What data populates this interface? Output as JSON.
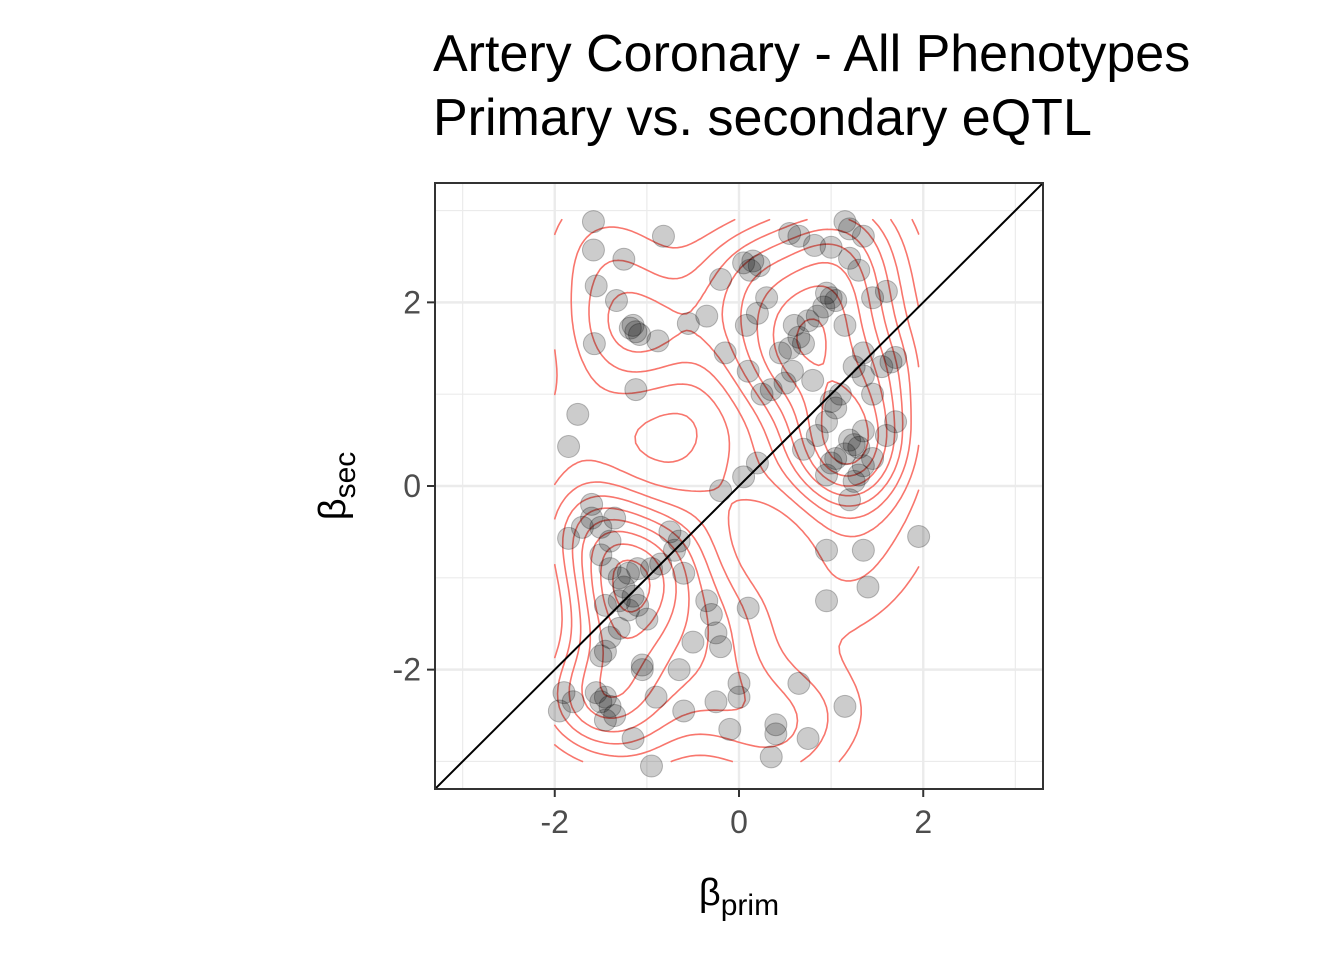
{
  "chart_data": {
    "type": "scatter",
    "title": "Artery Coronary - All Phenotypes",
    "subtitle": "Primary vs. secondary eQTL",
    "xlabel": {
      "symbol": "β",
      "subscript": "prim"
    },
    "ylabel": {
      "symbol": "β",
      "subscript": "sec"
    },
    "xlim": [
      -3.3,
      3.3
    ],
    "ylim": [
      -3.3,
      3.3
    ],
    "x_ticks": [
      {
        "value": -2,
        "label": "-2"
      },
      {
        "value": 0,
        "label": "0"
      },
      {
        "value": 2,
        "label": "2"
      }
    ],
    "y_ticks": [
      {
        "value": -2,
        "label": "-2"
      },
      {
        "value": 0,
        "label": "0"
      },
      {
        "value": 2,
        "label": "2"
      }
    ],
    "grid": true,
    "reference_line": "y = x",
    "density_contours": true,
    "colors": {
      "points": "#000000",
      "contours": "#f8766d",
      "reference_line": "#000000",
      "grid": "#ebebeb"
    },
    "points": [
      [
        -1.58,
        2.88
      ],
      [
        -1.58,
        2.57
      ],
      [
        -1.25,
        2.47
      ],
      [
        -1.55,
        2.18
      ],
      [
        -1.33,
        2.02
      ],
      [
        -1.15,
        1.75
      ],
      [
        -1.12,
        1.68
      ],
      [
        -1.08,
        1.65
      ],
      [
        -1.18,
        1.72
      ],
      [
        -0.88,
        1.58
      ],
      [
        -0.55,
        1.77
      ],
      [
        -0.82,
        2.72
      ],
      [
        -1.57,
        1.55
      ],
      [
        -1.12,
        1.05
      ],
      [
        -1.75,
        0.78
      ],
      [
        -1.85,
        0.43
      ],
      [
        0.05,
        2.43
      ],
      [
        0.12,
        2.35
      ],
      [
        0.22,
        2.4
      ],
      [
        0.15,
        2.45
      ],
      [
        0.3,
        2.05
      ],
      [
        0.2,
        1.88
      ],
      [
        0.08,
        1.75
      ],
      [
        0.55,
        2.75
      ],
      [
        0.65,
        2.72
      ],
      [
        0.82,
        2.62
      ],
      [
        1.0,
        2.6
      ],
      [
        1.15,
        2.88
      ],
      [
        1.2,
        2.8
      ],
      [
        1.35,
        2.72
      ],
      [
        0.95,
        2.1
      ],
      [
        1.0,
        2.05
      ],
      [
        0.92,
        1.95
      ],
      [
        1.05,
        2.02
      ],
      [
        0.85,
        1.85
      ],
      [
        1.15,
        1.75
      ],
      [
        0.6,
        1.75
      ],
      [
        0.65,
        1.62
      ],
      [
        0.7,
        1.55
      ],
      [
        0.55,
        1.5
      ],
      [
        0.75,
        1.8
      ],
      [
        0.45,
        1.45
      ],
      [
        0.58,
        1.25
      ],
      [
        0.35,
        1.05
      ],
      [
        0.5,
        1.12
      ],
      [
        0.8,
        1.15
      ],
      [
        1.25,
        1.3
      ],
      [
        1.35,
        1.2
      ],
      [
        1.45,
        1.0
      ],
      [
        1.55,
        1.3
      ],
      [
        1.65,
        1.35
      ],
      [
        1.7,
        1.4
      ],
      [
        1.6,
        2.12
      ],
      [
        1.45,
        2.05
      ],
      [
        1.3,
        2.35
      ],
      [
        1.2,
        2.48
      ],
      [
        1.35,
        1.45
      ],
      [
        1.1,
        1.0
      ],
      [
        1.05,
        0.85
      ],
      [
        1.0,
        0.92
      ],
      [
        0.95,
        0.7
      ],
      [
        0.85,
        0.55
      ],
      [
        0.7,
        0.4
      ],
      [
        1.2,
        0.5
      ],
      [
        1.25,
        0.45
      ],
      [
        1.3,
        0.42
      ],
      [
        1.15,
        0.35
      ],
      [
        1.05,
        0.3
      ],
      [
        1.0,
        0.25
      ],
      [
        1.35,
        0.22
      ],
      [
        1.45,
        0.3
      ],
      [
        1.3,
        0.12
      ],
      [
        1.6,
        0.55
      ],
      [
        1.7,
        0.7
      ],
      [
        1.2,
        -0.15
      ],
      [
        0.95,
        0.12
      ],
      [
        -0.35,
        1.85
      ],
      [
        -0.2,
        2.25
      ],
      [
        -0.15,
        1.45
      ],
      [
        0.1,
        1.25
      ],
      [
        0.25,
        1.0
      ],
      [
        0.05,
        0.1
      ],
      [
        -0.2,
        -0.05
      ],
      [
        0.2,
        0.25
      ],
      [
        -1.6,
        -0.35
      ],
      [
        -1.5,
        -0.45
      ],
      [
        -1.4,
        -0.6
      ],
      [
        -1.35,
        -0.35
      ],
      [
        -1.7,
        -0.45
      ],
      [
        -1.85,
        -0.57
      ],
      [
        -1.5,
        -0.75
      ],
      [
        -1.4,
        -0.9
      ],
      [
        -1.3,
        -1.0
      ],
      [
        -1.2,
        -0.95
      ],
      [
        -1.25,
        -1.1
      ],
      [
        -1.15,
        -1.2
      ],
      [
        -1.3,
        -1.25
      ],
      [
        -1.2,
        -1.35
      ],
      [
        -1.45,
        -1.3
      ],
      [
        -1.1,
        -0.9
      ],
      [
        -0.95,
        -0.9
      ],
      [
        -0.85,
        -0.85
      ],
      [
        -0.7,
        -0.7
      ],
      [
        -0.65,
        -0.6
      ],
      [
        -0.6,
        -0.95
      ],
      [
        -1.0,
        -1.45
      ],
      [
        -1.3,
        -1.55
      ],
      [
        -1.4,
        -1.65
      ],
      [
        -1.45,
        -1.8
      ],
      [
        -1.5,
        -1.85
      ],
      [
        -1.55,
        -2.25
      ],
      [
        -1.45,
        -2.3
      ],
      [
        -1.5,
        -2.35
      ],
      [
        -1.4,
        -2.4
      ],
      [
        -1.35,
        -2.5
      ],
      [
        -1.45,
        -2.55
      ],
      [
        -1.9,
        -2.25
      ],
      [
        -1.95,
        -2.45
      ],
      [
        -1.8,
        -2.35
      ],
      [
        -1.15,
        -2.75
      ],
      [
        -0.35,
        -1.25
      ],
      [
        -0.3,
        -1.4
      ],
      [
        -0.25,
        -1.6
      ],
      [
        -0.2,
        -1.75
      ],
      [
        -0.5,
        -1.7
      ],
      [
        -0.65,
        -2.0
      ],
      [
        -0.6,
        -2.45
      ],
      [
        -0.25,
        -2.35
      ],
      [
        -0.1,
        -2.65
      ],
      [
        0.0,
        -2.15
      ],
      [
        0.0,
        -2.3
      ],
      [
        0.1,
        -1.33
      ],
      [
        0.4,
        -2.7
      ],
      [
        0.4,
        -2.6
      ],
      [
        0.35,
        -2.95
      ],
      [
        0.65,
        -2.15
      ],
      [
        0.75,
        -2.75
      ],
      [
        -0.95,
        -3.05
      ],
      [
        -1.05,
        -1.95
      ],
      [
        -0.9,
        -2.3
      ],
      [
        -1.05,
        -2.0
      ],
      [
        -1.1,
        -1.3
      ],
      [
        -1.6,
        -0.2
      ],
      [
        -0.75,
        -0.5
      ],
      [
        0.95,
        -0.7
      ],
      [
        0.95,
        -1.25
      ],
      [
        1.35,
        -0.7
      ],
      [
        1.4,
        -1.1
      ],
      [
        1.95,
        -0.55
      ],
      [
        1.15,
        -2.4
      ],
      [
        1.35,
        0.6
      ],
      [
        1.25,
        0.05
      ]
    ]
  }
}
